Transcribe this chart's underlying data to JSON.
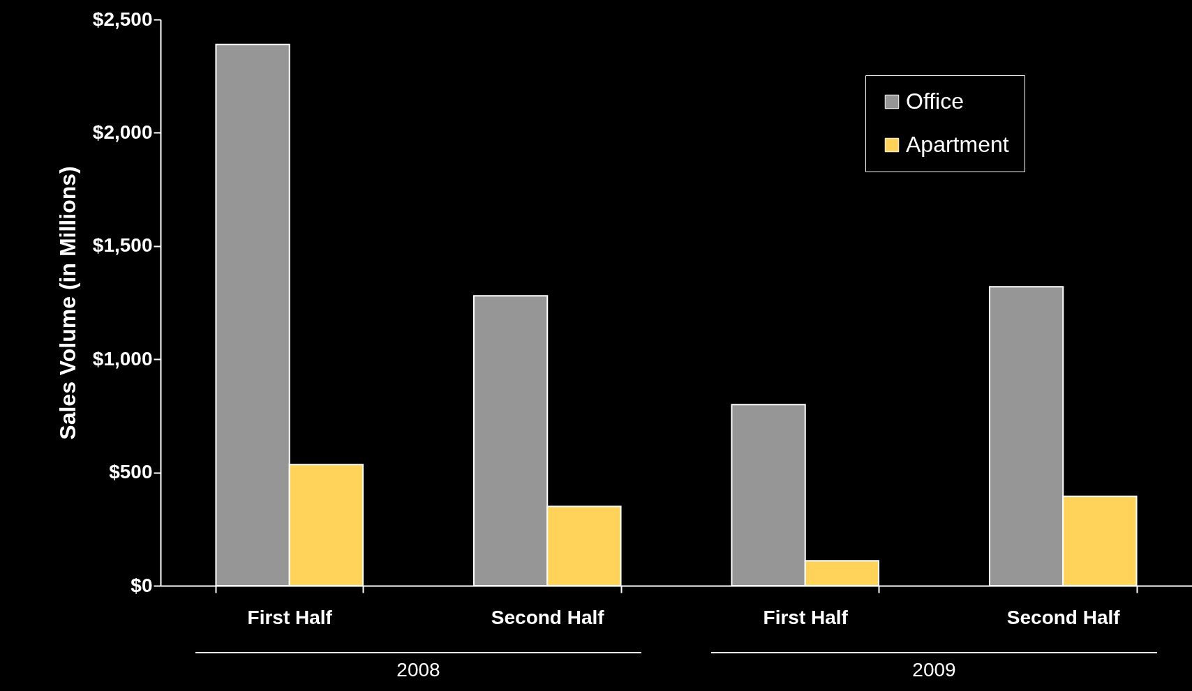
{
  "chart_data": {
    "type": "bar",
    "ylabel": "Sales Volume (in Millions)",
    "categories": [
      "First Half",
      "Second Half",
      "First Half",
      "Second Half"
    ],
    "series": [
      {
        "name": "Office",
        "color": "#969696",
        "values": [
          2390,
          1280,
          800,
          1320
        ]
      },
      {
        "name": "Apartment",
        "color": "#ffd35a",
        "values": [
          535,
          350,
          110,
          395
        ]
      }
    ],
    "ylim": [
      0,
      2500
    ],
    "yticks": [
      {
        "value": 0,
        "label": "$0"
      },
      {
        "value": 500,
        "label": "$500"
      },
      {
        "value": 1000,
        "label": "$1,000"
      },
      {
        "value": 1500,
        "label": "$1,500"
      },
      {
        "value": 2000,
        "label": "$2,000"
      },
      {
        "value": 2500,
        "label": "$2,500"
      }
    ],
    "legend": "top right",
    "grid": false,
    "annotations": [
      "2008",
      "2009"
    ]
  }
}
